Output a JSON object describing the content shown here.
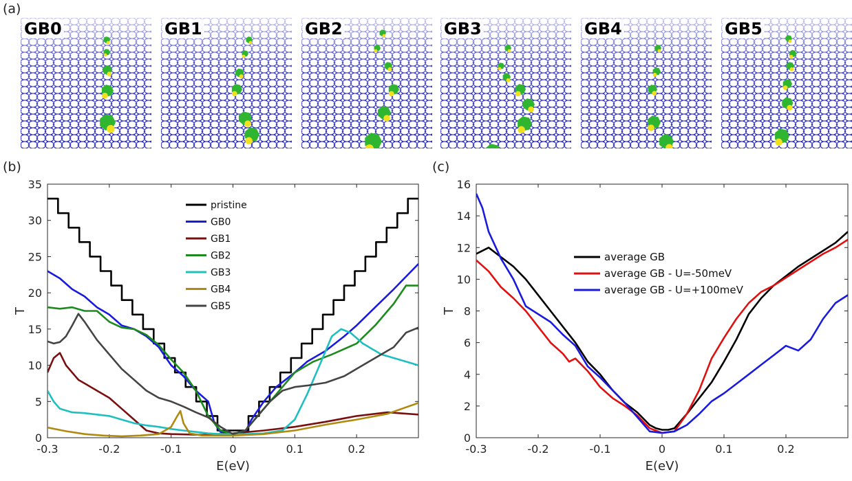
{
  "panel_letters": {
    "a": "(a)",
    "b": "(b)",
    "c": "(c)"
  },
  "structures": [
    {
      "label": "GB0"
    },
    {
      "label": "GB1"
    },
    {
      "label": "GB2"
    },
    {
      "label": "GB3"
    },
    {
      "label": "GB4"
    },
    {
      "label": "GB5"
    }
  ],
  "colors": {
    "lattice": "#2b2bc8",
    "defect_green": "#2fb52f",
    "defect_yellow": "#f0e020"
  },
  "chart_data": [
    {
      "type": "line",
      "xlabel": "E(eV)",
      "ylabel": "T",
      "xlim": [
        -0.3,
        0.3
      ],
      "ylim": [
        0,
        35
      ],
      "xticks": [
        -0.3,
        -0.2,
        -0.1,
        0,
        0.1,
        0.2
      ],
      "yticks": [
        0,
        5,
        10,
        15,
        20,
        25,
        30,
        35
      ],
      "legend_position": "upper-center",
      "series": [
        {
          "name": "pristine",
          "color": "#000000",
          "style": "staircase",
          "gap": 0.025,
          "steps": 16,
          "step_width": 0.0172
        },
        {
          "name": "GB0",
          "color": "#1a1adf",
          "x": [
            -0.3,
            -0.28,
            -0.26,
            -0.24,
            -0.22,
            -0.2,
            -0.18,
            -0.16,
            -0.14,
            -0.12,
            -0.1,
            -0.08,
            -0.06,
            -0.04,
            -0.03,
            -0.02,
            0,
            0.02,
            0.03,
            0.05,
            0.07,
            0.1,
            0.12,
            0.15,
            0.18,
            0.2,
            0.23,
            0.26,
            0.3
          ],
          "y": [
            23,
            22,
            20.5,
            19.5,
            18,
            17,
            15.5,
            15,
            14,
            12.5,
            10,
            8.5,
            6.5,
            5,
            2,
            0.8,
            0.5,
            0.8,
            2.5,
            5,
            7,
            9,
            10.5,
            12,
            14,
            15.5,
            18,
            20.5,
            24
          ]
        },
        {
          "name": "GB1",
          "color": "#7a0f0f",
          "x": [
            -0.3,
            -0.29,
            -0.28,
            -0.27,
            -0.25,
            -0.23,
            -0.2,
            -0.18,
            -0.16,
            -0.14,
            -0.12,
            -0.1,
            -0.05,
            0,
            0.05,
            0.1,
            0.15,
            0.2,
            0.25,
            0.3
          ],
          "y": [
            9,
            11,
            11.7,
            10,
            8,
            7,
            5.5,
            4,
            2.5,
            1,
            0.6,
            0.5,
            0.4,
            0.6,
            1,
            1.5,
            2.2,
            3,
            3.5,
            3.2
          ]
        },
        {
          "name": "GB2",
          "color": "#1c8a1c",
          "x": [
            -0.3,
            -0.28,
            -0.26,
            -0.24,
            -0.22,
            -0.2,
            -0.18,
            -0.16,
            -0.14,
            -0.12,
            -0.1,
            -0.08,
            -0.06,
            -0.04,
            -0.02,
            0,
            0.02,
            0.04,
            0.06,
            0.08,
            0.1,
            0.13,
            0.16,
            0.2,
            0.23,
            0.26,
            0.28,
            0.3
          ],
          "y": [
            18,
            17.8,
            18,
            17.5,
            17.5,
            16,
            15.2,
            15,
            14.2,
            12.8,
            10.8,
            9,
            6.5,
            3,
            1,
            0.5,
            1,
            3,
            5,
            7,
            9,
            10.5,
            11.5,
            13,
            15.5,
            18.5,
            21,
            21
          ]
        },
        {
          "name": "GB3",
          "color": "#1fbfbf",
          "x": [
            -0.3,
            -0.29,
            -0.28,
            -0.26,
            -0.24,
            -0.22,
            -0.2,
            -0.18,
            -0.16,
            -0.14,
            -0.12,
            -0.1,
            -0.08,
            -0.06,
            -0.04,
            -0.02,
            0,
            0.02,
            0.05,
            0.08,
            0.1,
            0.12,
            0.14,
            0.16,
            0.175,
            0.19,
            0.21,
            0.24,
            0.26,
            0.28,
            0.3
          ],
          "y": [
            6.5,
            5,
            4,
            3.5,
            3.4,
            3.2,
            3,
            2.5,
            2,
            1.7,
            1.5,
            1.2,
            1,
            0.8,
            0.6,
            0.5,
            0.5,
            0.5,
            0.6,
            1,
            2.5,
            6,
            10,
            14,
            15,
            14.5,
            13,
            11.5,
            11,
            10.5,
            10
          ]
        },
        {
          "name": "GB4",
          "color": "#b08a10",
          "x": [
            -0.3,
            -0.27,
            -0.24,
            -0.21,
            -0.18,
            -0.15,
            -0.12,
            -0.1,
            -0.09,
            -0.085,
            -0.08,
            -0.07,
            -0.05,
            -0.02,
            0,
            0.05,
            0.1,
            0.15,
            0.2,
            0.25,
            0.3
          ],
          "y": [
            1.4,
            0.9,
            0.5,
            0.3,
            0.2,
            0.3,
            0.5,
            1.5,
            3,
            3.7,
            2,
            0.6,
            0.3,
            0.3,
            0.3,
            0.5,
            1,
            1.8,
            2.5,
            3.3,
            4.8
          ]
        },
        {
          "name": "GB5",
          "color": "#444444",
          "x": [
            -0.3,
            -0.29,
            -0.28,
            -0.27,
            -0.26,
            -0.25,
            -0.24,
            -0.22,
            -0.2,
            -0.18,
            -0.16,
            -0.14,
            -0.12,
            -0.1,
            -0.08,
            -0.06,
            -0.04,
            -0.02,
            0,
            0.02,
            0.04,
            0.06,
            0.08,
            0.1,
            0.12,
            0.15,
            0.18,
            0.2,
            0.23,
            0.26,
            0.28,
            0.3
          ],
          "y": [
            13.3,
            13,
            13.2,
            14,
            15.5,
            17.1,
            16,
            13.5,
            11.5,
            9.5,
            8,
            6.5,
            5.5,
            5,
            4.3,
            3.5,
            2.8,
            1.5,
            0.5,
            1,
            3,
            5,
            6.5,
            7,
            7.2,
            7.6,
            8.5,
            9.5,
            11,
            12.5,
            14.5,
            15.2
          ]
        }
      ]
    },
    {
      "type": "line",
      "xlabel": "E(eV)",
      "ylabel": "T",
      "xlim": [
        -0.3,
        0.3
      ],
      "ylim": [
        0,
        16
      ],
      "xticks": [
        -0.3,
        -0.2,
        -0.1,
        0,
        0.1,
        0.2
      ],
      "yticks": [
        0,
        2,
        4,
        6,
        8,
        10,
        12,
        14,
        16
      ],
      "legend_position": "center",
      "series": [
        {
          "name": "average GB",
          "color": "#000000",
          "x": [
            -0.3,
            -0.28,
            -0.26,
            -0.24,
            -0.22,
            -0.2,
            -0.18,
            -0.16,
            -0.14,
            -0.12,
            -0.1,
            -0.08,
            -0.06,
            -0.04,
            -0.02,
            -0.01,
            0,
            0.01,
            0.02,
            0.04,
            0.06,
            0.08,
            0.1,
            0.12,
            0.14,
            0.16,
            0.18,
            0.2,
            0.22,
            0.24,
            0.26,
            0.28,
            0.3
          ],
          "y": [
            11.6,
            12,
            11.4,
            10.8,
            10,
            9,
            8,
            7,
            6,
            4.8,
            4,
            3,
            2.2,
            1.6,
            0.8,
            0.6,
            0.5,
            0.5,
            0.6,
            1.5,
            2.5,
            3.5,
            4.8,
            6.2,
            7.8,
            8.8,
            9.6,
            10.2,
            10.8,
            11.3,
            11.8,
            12.3,
            13
          ]
        },
        {
          "name": "average GB - U=-50meV",
          "color": "#e01010",
          "x": [
            -0.3,
            -0.28,
            -0.26,
            -0.24,
            -0.22,
            -0.2,
            -0.18,
            -0.16,
            -0.15,
            -0.14,
            -0.12,
            -0.1,
            -0.08,
            -0.06,
            -0.04,
            -0.02,
            0,
            0.02,
            0.04,
            0.06,
            0.08,
            0.1,
            0.12,
            0.14,
            0.16,
            0.18,
            0.2,
            0.22,
            0.24,
            0.26,
            0.28,
            0.3
          ],
          "y": [
            11.2,
            10.5,
            9.5,
            8.8,
            8,
            7,
            6,
            5.3,
            4.8,
            5,
            4.2,
            3.2,
            2.5,
            2,
            1.4,
            0.6,
            0.3,
            0.4,
            1.5,
            3,
            5,
            6.3,
            7.5,
            8.5,
            9.2,
            9.6,
            10.1,
            10.6,
            11.1,
            11.6,
            12,
            12.5
          ]
        },
        {
          "name": "average GB - U=+100meV",
          "color": "#1a1adf",
          "x": [
            -0.3,
            -0.29,
            -0.28,
            -0.26,
            -0.24,
            -0.22,
            -0.2,
            -0.18,
            -0.16,
            -0.14,
            -0.12,
            -0.1,
            -0.08,
            -0.06,
            -0.04,
            -0.02,
            0,
            0.02,
            0.04,
            0.06,
            0.08,
            0.1,
            0.12,
            0.14,
            0.16,
            0.18,
            0.2,
            0.22,
            0.24,
            0.26,
            0.28,
            0.3
          ],
          "y": [
            15.4,
            14.5,
            13,
            11.3,
            10,
            8.3,
            7.8,
            7.3,
            6.5,
            5.8,
            4.5,
            3.8,
            3,
            2.2,
            1.3,
            0.4,
            0.3,
            0.4,
            0.8,
            1.5,
            2.3,
            2.8,
            3.4,
            4,
            4.6,
            5.2,
            5.8,
            5.5,
            6.2,
            7.5,
            8.5,
            9
          ]
        }
      ]
    }
  ]
}
